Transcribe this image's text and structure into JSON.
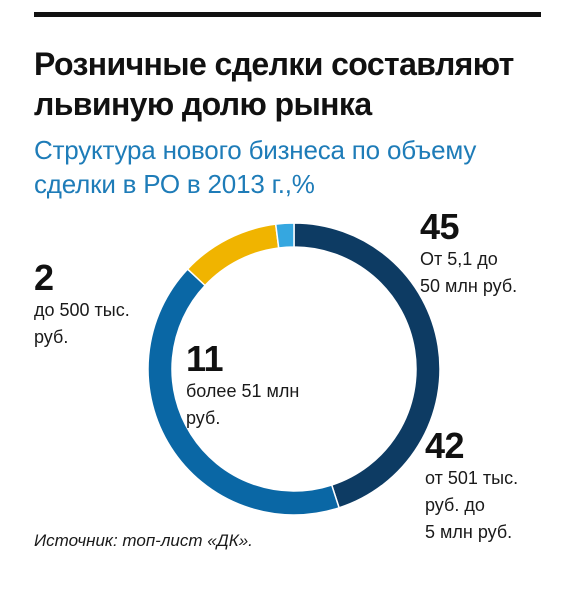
{
  "colors": {
    "title": "#111111",
    "subtitle": "#1e7cb8",
    "text": "#1a1a1a",
    "rule": "#111111"
  },
  "header": {
    "title": "Розничные сделки составляют львиную долю рынка",
    "subtitle": "Структура нового бизнеса по объему сделки  в РО в 2013 г.,%"
  },
  "chart_data": {
    "type": "pie",
    "style": "donut",
    "title": "Структура нового бизнеса по объему сделки  в РО в 2013 г.,%",
    "unit": "%",
    "slices": [
      {
        "value": 45,
        "value_label": "45",
        "label": "От 5,1 до 50 млн руб.",
        "label_lines": [
          "От 5,1 до",
          "50 млн руб."
        ],
        "color": "#0d3b63"
      },
      {
        "value": 42,
        "value_label": "42",
        "label": "от 501 тыс. руб. до 5 млн руб.",
        "label_lines": [
          "от 501 тыс.",
          "руб. до",
          "5 млн руб."
        ],
        "color": "#0a67a5"
      },
      {
        "value": 11,
        "value_label": "11",
        "label": "более 51 млн руб.",
        "label_lines": [
          "более 51 млн",
          "руб."
        ],
        "color": "#f0b400"
      },
      {
        "value": 2,
        "value_label": "2",
        "label": "до 500 тыс. руб.",
        "label_lines": [
          "до 500 тыс.",
          "руб."
        ],
        "color": "#35a7e0"
      }
    ]
  },
  "source": "Источник: топ-лист «ДК»."
}
